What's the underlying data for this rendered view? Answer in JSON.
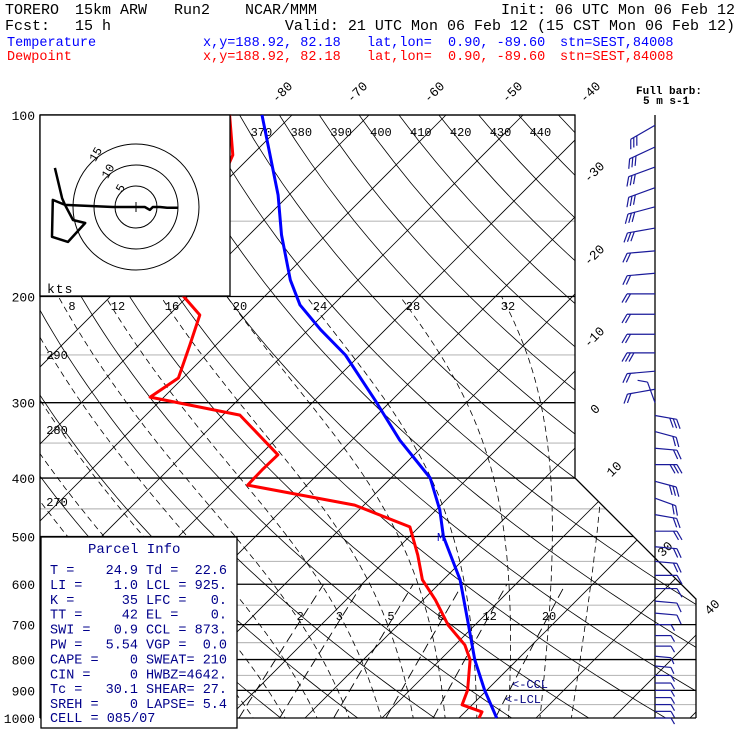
{
  "header": {
    "model": "TORERO",
    "resolution": "15km ARW",
    "run": "Run2",
    "org": "NCAR/MMM",
    "init": "Init: 06 UTC Mon 06 Feb 12",
    "fcst_label": "Fcst:",
    "fcst_value": "15 h",
    "valid": "Valid: 21 UTC Mon 06 Feb 12 (15 CST Mon 06 Feb 12)"
  },
  "legend": [
    {
      "name": "Temperature",
      "xy": "x,y=188.92, 82.18",
      "latlon": "lat,lon=  0.90, -89.60",
      "stn": "stn=SEST,84008",
      "color": "#0000ff"
    },
    {
      "name": "Dewpoint",
      "xy": "x,y=188.92, 82.18",
      "latlon": "lat,lon=  0.90, -89.60",
      "stn": "stn=SEST,84008",
      "color": "#ff0000"
    }
  ],
  "parcel_info": {
    "title": "Parcel Info",
    "rows": [
      {
        "l": "T  =",
        "lv": "24.9",
        "r": "Td =",
        "rv": "22.6"
      },
      {
        "l": "LI =",
        "lv": "1.0",
        "r": "LCL =",
        "rv": "925."
      },
      {
        "l": "K  =",
        "lv": "35",
        "r": "LFC =",
        "rv": "0."
      },
      {
        "l": "TT =",
        "lv": "42",
        "r": "EL  =",
        "rv": "0."
      },
      {
        "l": "SWI =",
        "lv": "0.9",
        "r": "CCL =",
        "rv": "873."
      },
      {
        "l": "PW =",
        "lv": "5.54",
        "r": "VGP =",
        "rv": "0.0"
      },
      {
        "l": "CAPE =",
        "lv": "0",
        "r": "SWEAT=",
        "rv": "210"
      },
      {
        "l": "CIN =",
        "lv": "0",
        "r": "HWBZ=",
        "rv": "4642."
      },
      {
        "l": "Tc =",
        "lv": "30.1",
        "r": "SHEAR=",
        "rv": "27."
      },
      {
        "l": "SREH =",
        "lv": "0",
        "r": "LAPSE=",
        "rv": "5.4"
      }
    ],
    "cell": "CELL = 085/07"
  },
  "chart_data": {
    "type": "line",
    "subtype": "skew-T log-p",
    "pressure_levels": [
      "100",
      "200",
      "300",
      "400",
      "500",
      "600",
      "700",
      "800",
      "900",
      "1000"
    ],
    "isotherm_labels": [
      "-80",
      "-70",
      "-60",
      "-50",
      "-40",
      "-30",
      "-20",
      "-10",
      "0",
      "10",
      "30",
      "40"
    ],
    "theta_labels_top": [
      "370",
      "380",
      "390",
      "400",
      "410",
      "420",
      "430",
      "440"
    ],
    "theta_labels_left": [
      "290",
      "280",
      "270"
    ],
    "upper_labels": [
      "8",
      "12",
      "16",
      "20",
      "24",
      "28",
      "32"
    ],
    "mixing_ratio_labels": [
      "2",
      "3",
      "5",
      "8",
      "12",
      "20"
    ],
    "mixing_ratios_gkg": [
      2,
      3,
      5,
      8,
      12,
      20
    ],
    "series": [
      {
        "name": "Temperature",
        "color": "#0000ff",
        "p": [
          1000,
          899,
          801,
          688,
          590,
          500,
          452,
          400,
          346,
          297,
          250,
          227,
          206.5,
          187.7,
          158,
          135.8,
          100
        ],
        "T": [
          24.9,
          19.7,
          14.5,
          8.4,
          2.2,
          -5.6,
          -9.5,
          -14.9,
          -23.8,
          -32.2,
          -41.9,
          -48.4,
          -54.3,
          -58.8,
          -65.8,
          -71.4,
          -83.9
        ]
      },
      {
        "name": "Dewpoint",
        "color": "#ff0000",
        "p": [
          1000,
          977,
          951,
          899,
          801,
          757,
          701,
          637,
          590,
          537,
          482,
          443.5,
          411,
          388,
          366,
          314.5,
          293.6,
          273,
          240.6,
          214.6,
          195,
          175,
          155,
          135.8,
          116.5,
          100
        ],
        "T": [
          22.6,
          22.2,
          18.7,
          17.5,
          13.9,
          11.3,
          6.5,
          1.6,
          -2.7,
          -6.5,
          -11.2,
          -21.2,
          -37.7,
          -37.8,
          -37.7,
          -47.8,
          -61.8,
          -60.6,
          -63.4,
          -66,
          -72.1,
          -72.2,
          -74.7,
          -79.6,
          -82.5,
          -88.1
        ]
      }
    ],
    "markers": {
      "m": "M",
      "ccl": "<-CCL",
      "lcl": "<-LCL"
    },
    "winds": {
      "title": "Full barb:",
      "unit": "5 m s-1",
      "p": [
        104,
        113,
        122,
        132,
        142,
        154,
        168,
        183,
        198,
        214,
        231,
        248,
        266,
        285,
        300,
        315,
        335,
        357,
        380,
        405,
        432,
        460,
        490,
        520,
        550,
        580,
        610,
        640,
        670,
        700,
        730,
        760,
        790,
        820,
        850,
        875,
        900,
        925,
        950,
        975,
        1000
      ],
      "dir": [
        240,
        245,
        250,
        250,
        255,
        260,
        265,
        265,
        270,
        270,
        270,
        270,
        265,
        260,
        340,
        100,
        105,
        95,
        90,
        105,
        110,
        100,
        90,
        95,
        95,
        90,
        90,
        95,
        95,
        90,
        90,
        90,
        95,
        95,
        90,
        90,
        90,
        90,
        90,
        90,
        90
      ],
      "spd": [
        17,
        15,
        15,
        17,
        15,
        15,
        12,
        12,
        12,
        12,
        12,
        15,
        12,
        10,
        7,
        15,
        12,
        12,
        15,
        15,
        12,
        12,
        10,
        10,
        10,
        7,
        7,
        7,
        7,
        5,
        5,
        5,
        5,
        5,
        5,
        5,
        5,
        5,
        5,
        5,
        5
      ]
    },
    "hodograph": {
      "unit": "kts",
      "ring_labels": [
        "5",
        "10",
        "15"
      ],
      "rings": [
        5,
        10,
        15
      ],
      "u": [
        10.0,
        7.4,
        5.7,
        4.0,
        3.3,
        2.1,
        0.2,
        -5.5,
        -16.9,
        -15.0,
        -12.1,
        -16.2,
        -20.0,
        -19.8,
        -16.9,
        -17.6,
        -19.3
      ],
      "v": [
        -0.2,
        -0.2,
        0,
        0,
        -0.7,
        0,
        0,
        0,
        0.5,
        -3.1,
        -3.8,
        -8.3,
        -7.1,
        1.7,
        0.5,
        2.1,
        9.3
      ]
    }
  }
}
